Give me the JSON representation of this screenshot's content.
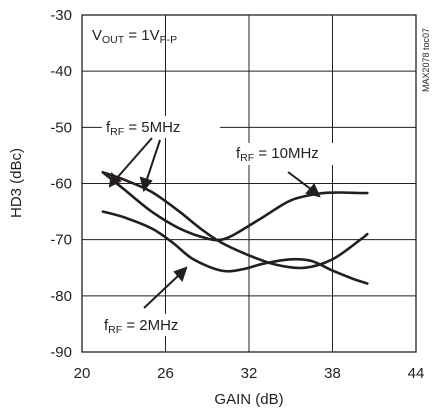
{
  "chart_data": {
    "type": "line",
    "xlabel": "GAIN (dB)",
    "ylabel": "HD3 (dBc)",
    "xlim": [
      20,
      44
    ],
    "ylim": [
      -90,
      -30
    ],
    "xticks": [
      20,
      26,
      32,
      38,
      44
    ],
    "yticks": [
      -30,
      -40,
      -50,
      -60,
      -70,
      -80,
      -90
    ],
    "grid": true,
    "side_label": "MAX2078 toc07",
    "condition": {
      "main": "V",
      "sub": "OUT",
      "rest": " = 1V",
      "sub2": "P-P"
    },
    "annotations": [
      {
        "main": "f",
        "sub": "RF",
        "rest": " = 5MHz"
      },
      {
        "main": "f",
        "sub": "RF",
        "rest": " = 10MHz"
      },
      {
        "main": "f",
        "sub": "RF",
        "rest": " = 2MHz"
      }
    ],
    "series": [
      {
        "x": [
          21.5,
          23,
          25,
          27,
          29,
          30,
          31,
          33,
          35,
          37,
          38.5,
          40,
          40.5
        ],
        "y": [
          -58,
          -61,
          -65,
          -68,
          -69.8,
          -70,
          -69,
          -66,
          -63,
          -61.8,
          -61.6,
          -61.7,
          -61.7
        ]
      },
      {
        "x": [
          21.5,
          23,
          25,
          27,
          28.5,
          30,
          32,
          34,
          36,
          38,
          40,
          40.5
        ],
        "y": [
          -58,
          -59.3,
          -61.5,
          -65,
          -68,
          -70.5,
          -72.8,
          -74.5,
          -75,
          -73.5,
          -70,
          -69
        ]
      },
      {
        "x": [
          21.5,
          23,
          25,
          26.5,
          28,
          30,
          31.5,
          33,
          35,
          36.5,
          38,
          39.5,
          40.5
        ],
        "y": [
          -65,
          -66,
          -68,
          -70.5,
          -73.5,
          -75.5,
          -75.3,
          -74.3,
          -73.5,
          -73.8,
          -75.5,
          -77,
          -77.8
        ]
      }
    ]
  }
}
